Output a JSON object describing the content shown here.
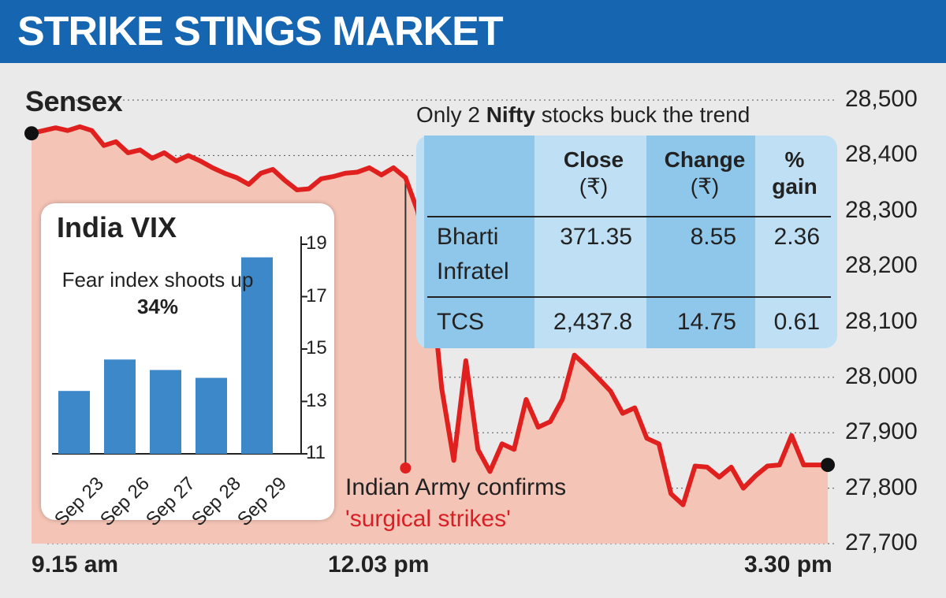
{
  "header": {
    "title": "STRIKE STINGS MARKET"
  },
  "chart_data": [
    {
      "type": "line",
      "title": "Sensex",
      "x_ticks": [
        "9.15 am",
        "12.03 pm",
        "3.30 pm"
      ],
      "ylim": [
        27700,
        28500
      ],
      "y_ticks": [
        "28,500",
        "28,400",
        "28,300",
        "28,200",
        "28,100",
        "28,000",
        "27,900",
        "27,800",
        "27,700"
      ],
      "values": [
        28440,
        28445,
        28450,
        28445,
        28452,
        28445,
        28418,
        28425,
        28405,
        28410,
        28395,
        28405,
        28390,
        28400,
        28390,
        28378,
        28368,
        28360,
        28348,
        28368,
        28375,
        28355,
        28338,
        28340,
        28358,
        28362,
        28368,
        28370,
        28378,
        28365,
        28378,
        28360,
        28300,
        28200,
        27980,
        27850,
        28030,
        27870,
        27830,
        27880,
        27870,
        27960,
        27910,
        27920,
        27960,
        28040,
        28020,
        27998,
        27975,
        27935,
        27945,
        27890,
        27880,
        27790,
        27770,
        27840,
        27838,
        27820,
        27838,
        27800,
        27822,
        27840,
        27842,
        27895,
        27842,
        27842,
        27842
      ],
      "event_index": 31,
      "annotation": {
        "line1": "Indian Army confirms",
        "line2": "'surgical strikes'"
      },
      "line_color": "#e0201e",
      "fill_color": "#f4c4b6"
    },
    {
      "type": "bar",
      "title": "India VIX",
      "subtitle_text": "Fear index shoots up",
      "subtitle_value": "34%",
      "categories": [
        "Sep 23",
        "Sep 26",
        "Sep 27",
        "Sep 28",
        "Sep 29"
      ],
      "values": [
        13.4,
        14.6,
        14.2,
        13.9,
        18.5
      ],
      "ylim": [
        11,
        19
      ],
      "y_ticks": [
        "19",
        "17",
        "15",
        "13",
        "11"
      ],
      "bar_color": "#3d88c9"
    },
    {
      "type": "table",
      "caption_pre": "Only 2 ",
      "caption_bold": "Nifty",
      "caption_post": " stocks buck the trend",
      "headers": [
        {
          "line1": "Close",
          "line2": "(₹)"
        },
        {
          "line1": "Change",
          "line2": "(₹)"
        },
        {
          "line1": "%",
          "line2": "gain"
        }
      ],
      "rows": [
        {
          "name_line1": "Bharti",
          "name_line2": "Infratel",
          "close": "371.35",
          "change": "8.55",
          "gain": "2.36"
        },
        {
          "name_line1": "TCS",
          "name_line2": "",
          "close": "2,437.8",
          "change": "14.75",
          "gain": "0.61"
        }
      ]
    }
  ]
}
